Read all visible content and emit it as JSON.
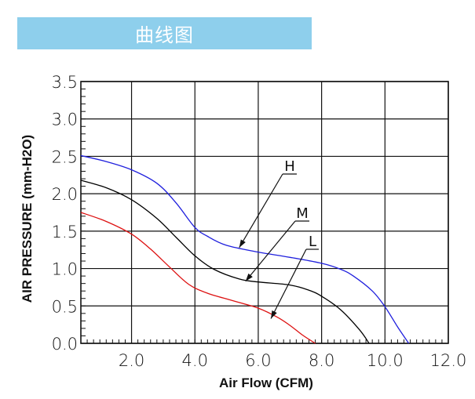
{
  "banner": {
    "title": "曲线图"
  },
  "chart_data": {
    "type": "line",
    "xlabel": "Air Flow (CFM)",
    "ylabel": "AIR PRESSURE (mm-H2O)",
    "xlim": [
      0.4,
      12.0
    ],
    "ylim": [
      0.0,
      3.5
    ],
    "x_ticks": [
      "2.0",
      "4.0",
      "6.0",
      "8.0",
      "10.0",
      "12.0"
    ],
    "y_ticks": [
      "0.0",
      "0.5",
      "1.0",
      "1.5",
      "2.0",
      "2.5",
      "3.0",
      "3.5"
    ],
    "grid": true,
    "series": [
      {
        "name": "H",
        "color": "#1f1fdd",
        "points": [
          [
            0.4,
            2.51
          ],
          [
            1.2,
            2.43
          ],
          [
            2.0,
            2.32
          ],
          [
            2.8,
            2.14
          ],
          [
            3.4,
            1.88
          ],
          [
            4.0,
            1.55
          ],
          [
            4.4,
            1.43
          ],
          [
            5.0,
            1.31
          ],
          [
            6.0,
            1.22
          ],
          [
            7.0,
            1.15
          ],
          [
            8.0,
            1.07
          ],
          [
            8.6,
            0.99
          ],
          [
            9.0,
            0.9
          ],
          [
            9.6,
            0.7
          ],
          [
            10.0,
            0.49
          ],
          [
            10.4,
            0.22
          ],
          [
            10.75,
            0.0
          ]
        ],
        "label_anchor": [
          5.4,
          1.28
        ]
      },
      {
        "name": "M",
        "color": "#000000",
        "points": [
          [
            0.4,
            2.18
          ],
          [
            1.2,
            2.08
          ],
          [
            2.0,
            1.92
          ],
          [
            2.8,
            1.67
          ],
          [
            3.4,
            1.42
          ],
          [
            4.0,
            1.17
          ],
          [
            4.6,
            0.99
          ],
          [
            5.4,
            0.86
          ],
          [
            6.0,
            0.82
          ],
          [
            7.0,
            0.78
          ],
          [
            7.6,
            0.71
          ],
          [
            8.0,
            0.63
          ],
          [
            8.6,
            0.45
          ],
          [
            9.2,
            0.18
          ],
          [
            9.5,
            0.0
          ]
        ],
        "label_anchor": [
          5.6,
          0.83
        ]
      },
      {
        "name": "L",
        "color": "#dd1111",
        "points": [
          [
            0.4,
            1.75
          ],
          [
            1.2,
            1.63
          ],
          [
            2.0,
            1.46
          ],
          [
            2.6,
            1.26
          ],
          [
            3.2,
            1.02
          ],
          [
            3.8,
            0.79
          ],
          [
            4.4,
            0.67
          ],
          [
            5.2,
            0.57
          ],
          [
            6.0,
            0.47
          ],
          [
            6.6,
            0.35
          ],
          [
            7.0,
            0.24
          ],
          [
            7.4,
            0.11
          ],
          [
            7.8,
            0.0
          ]
        ],
        "label_anchor": [
          6.4,
          0.33
        ]
      }
    ]
  }
}
